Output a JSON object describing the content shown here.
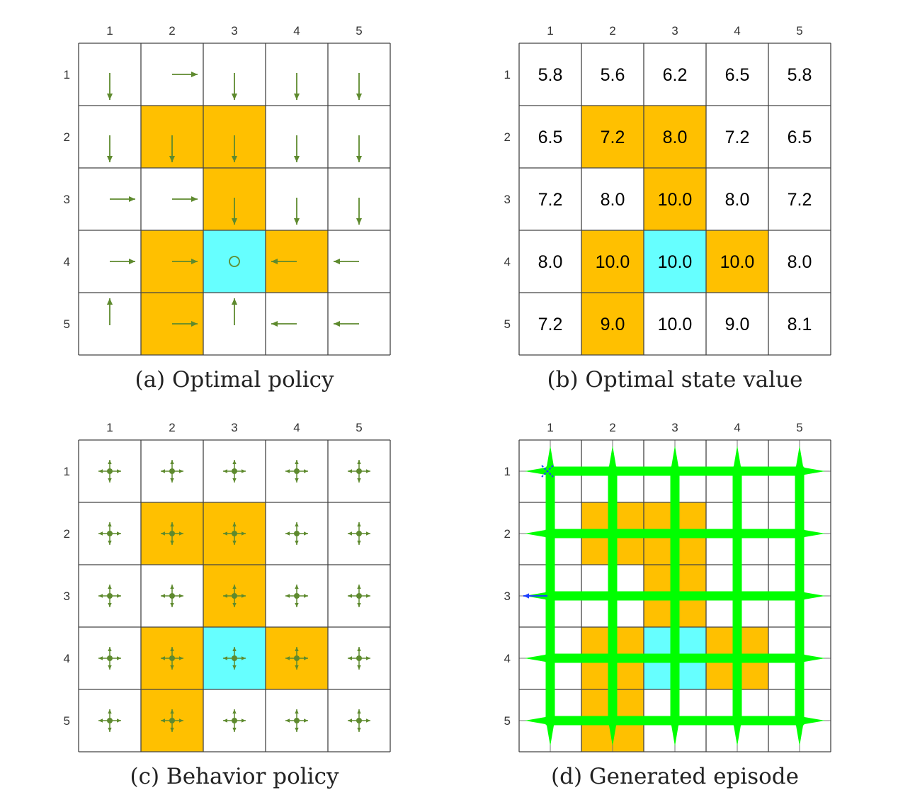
{
  "colors": {
    "forbidden": "#FFC000",
    "target": "#66FFFF",
    "arrow": "#5E8A2E",
    "episode": "#00FF00",
    "episode_start": "#1E40FF",
    "grid": "#444444"
  },
  "grid": {
    "size": 5,
    "col_labels": [
      "1",
      "2",
      "3",
      "4",
      "5"
    ],
    "row_labels": [
      "1",
      "2",
      "3",
      "4",
      "5"
    ],
    "forbidden_cells": [
      [
        2,
        2
      ],
      [
        2,
        3
      ],
      [
        3,
        3
      ],
      [
        4,
        2
      ],
      [
        4,
        4
      ],
      [
        5,
        2
      ]
    ],
    "target_cell": [
      4,
      3
    ]
  },
  "panels": [
    {
      "id": "a",
      "caption": "(a) Optimal policy",
      "kind": "policy",
      "actions": [
        [
          "down",
          "right",
          "down",
          "down",
          "down"
        ],
        [
          "down",
          "down",
          "down",
          "down",
          "down"
        ],
        [
          "right",
          "right",
          "down",
          "down",
          "down"
        ],
        [
          "right",
          "right",
          "stay",
          "left",
          "left"
        ],
        [
          "up",
          "right",
          "up",
          "left",
          "left"
        ]
      ]
    },
    {
      "id": "b",
      "caption": "(b) Optimal state value",
      "kind": "values",
      "values": [
        [
          "5.8",
          "5.6",
          "6.2",
          "6.5",
          "5.8"
        ],
        [
          "6.5",
          "7.2",
          "8.0",
          "7.2",
          "6.5"
        ],
        [
          "7.2",
          "8.0",
          "10.0",
          "8.0",
          "7.2"
        ],
        [
          "8.0",
          "10.0",
          "10.0",
          "10.0",
          "8.0"
        ],
        [
          "7.2",
          "9.0",
          "10.0",
          "9.0",
          "8.1"
        ]
      ]
    },
    {
      "id": "c",
      "caption": "(c) Behavior policy",
      "kind": "uniform"
    },
    {
      "id": "d",
      "caption": "(d) Generated episode",
      "kind": "episode",
      "subdivide": 2
    }
  ]
}
